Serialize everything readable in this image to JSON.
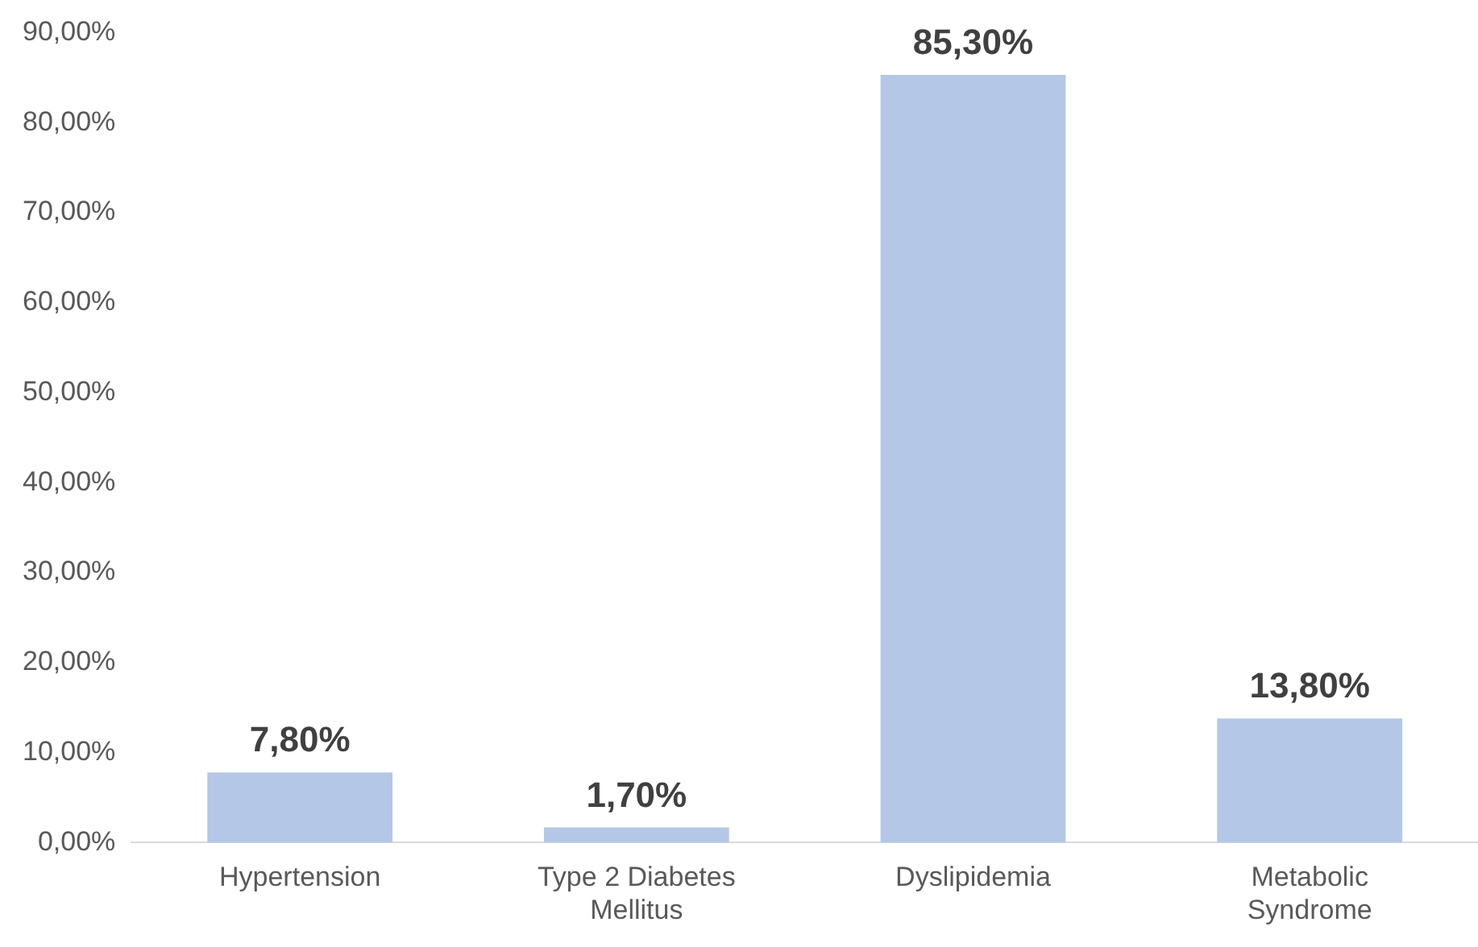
{
  "chart_data": {
    "type": "bar",
    "categories": [
      "Hypertension",
      "Type 2 Diabetes Mellitus",
      "Dyslipidemia",
      "Metabolic Syndrome"
    ],
    "values": [
      7.8,
      1.7,
      85.3,
      13.8
    ],
    "color": "#b4c7e7",
    "value_labels": [
      "7,80%",
      "1,70%",
      "85,30%",
      "13,80%"
    ],
    "ylim": [
      0,
      90
    ],
    "yticks": [
      {
        "value": 0,
        "label": "0,00%"
      },
      {
        "value": 10,
        "label": "10,00%"
      },
      {
        "value": 20,
        "label": "20,00%"
      },
      {
        "value": 30,
        "label": "30,00%"
      },
      {
        "value": 40,
        "label": "40,00%"
      },
      {
        "value": 50,
        "label": "50,00%"
      },
      {
        "value": 60,
        "label": "60,00%"
      },
      {
        "value": 70,
        "label": "70,00%"
      },
      {
        "value": 80,
        "label": "80,00%"
      },
      {
        "value": 90,
        "label": "90,00%"
      }
    ],
    "grid": false,
    "legend": false
  }
}
